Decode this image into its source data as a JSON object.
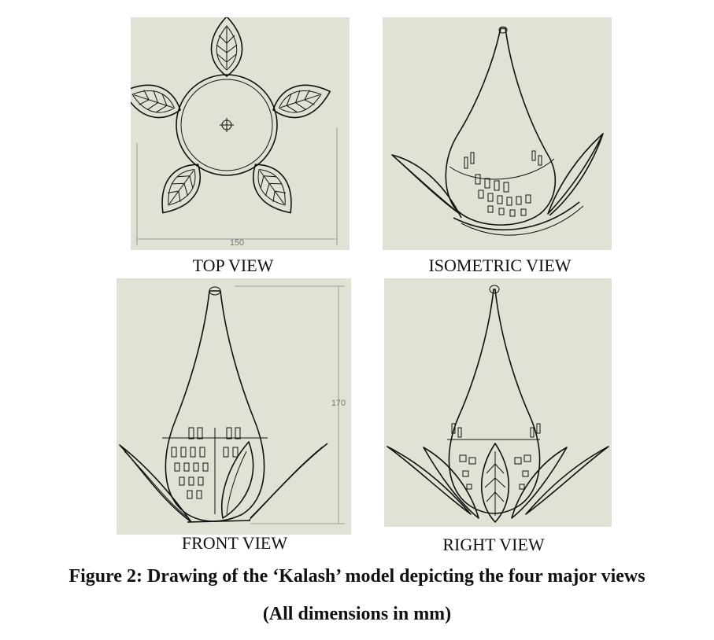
{
  "views": {
    "top": {
      "label": "TOP VIEW",
      "dimension": "150"
    },
    "isometric": {
      "label": "ISOMETRIC VIEW"
    },
    "front": {
      "label": "FRONT VIEW",
      "dimension": "170"
    },
    "right": {
      "label": "RIGHT VIEW"
    }
  },
  "caption": {
    "title": "Figure 2: Drawing of the ‘Kalash’ model depicting the four major views",
    "subtitle": "(All dimensions in mm)"
  },
  "colors": {
    "panel_background": "#e2e1d5",
    "line": "#111111",
    "dimension": "#777777"
  }
}
